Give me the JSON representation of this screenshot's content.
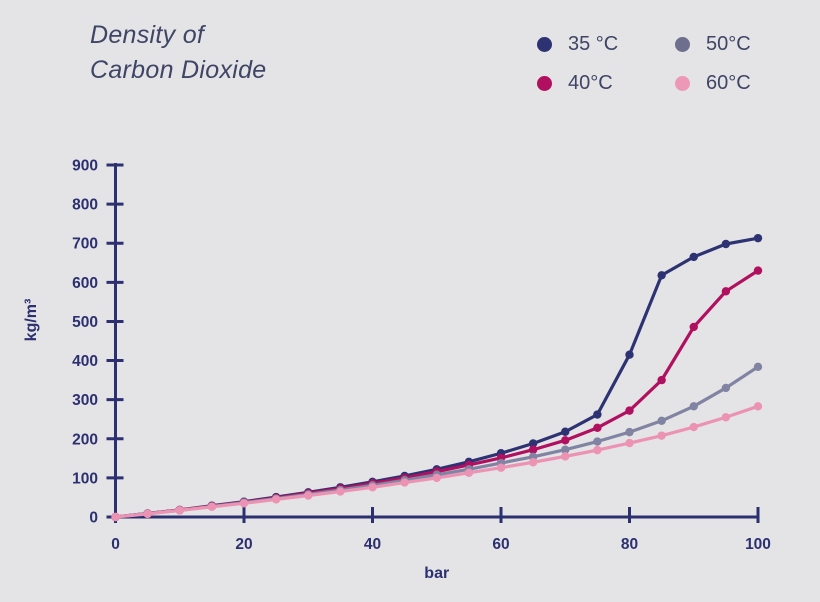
{
  "title": {
    "line1": "Density of",
    "line2": "Carbon Dioxide"
  },
  "legend": [
    {
      "label": "35 °C",
      "color": "#2d3272",
      "col": 0,
      "row": 0
    },
    {
      "label": "40°C",
      "color": "#b0105f",
      "col": 0,
      "row": 1
    },
    {
      "label": "50°C",
      "color": "#6e6e8e",
      "col": 1,
      "row": 0
    },
    {
      "label": "60°C",
      "color": "#ee98b8",
      "col": 1,
      "row": 1
    }
  ],
  "colors": {
    "background": "#e4e3e5",
    "axis": "#2c3070",
    "title_text": "#3e4566"
  },
  "chart_data": {
    "type": "line",
    "title": "Density of Carbon Dioxide",
    "xlabel": "bar",
    "ylabel": "kg/m³",
    "xlim": [
      0,
      100
    ],
    "ylim": [
      0,
      900
    ],
    "x_ticks": [
      0,
      20,
      40,
      60,
      80,
      100
    ],
    "y_ticks": [
      0,
      100,
      200,
      300,
      400,
      500,
      600,
      700,
      800,
      900
    ],
    "grid": false,
    "legend_position": "top-right",
    "x": [
      0,
      5,
      10,
      15,
      20,
      25,
      30,
      35,
      40,
      45,
      50,
      55,
      60,
      65,
      70,
      75,
      80,
      85,
      90,
      95,
      100
    ],
    "series": [
      {
        "name": "35 °C",
        "color": "#2d3272",
        "values": [
          0,
          9,
          18,
          29,
          39,
          51,
          63,
          76,
          90,
          105,
          122,
          141,
          163,
          188,
          218,
          262,
          415,
          618,
          665,
          698,
          713
        ]
      },
      {
        "name": "40°C",
        "color": "#b0105f",
        "values": [
          0,
          9,
          18,
          28,
          38,
          49,
          61,
          73,
          86,
          100,
          116,
          133,
          151,
          172,
          196,
          228,
          272,
          350,
          486,
          577,
          630
        ]
      },
      {
        "name": "50°C",
        "color": "#8183a3",
        "values": [
          0,
          9,
          17,
          27,
          37,
          47,
          58,
          69,
          81,
          94,
          108,
          122,
          138,
          154,
          172,
          193,
          217,
          246,
          283,
          330,
          384
        ]
      },
      {
        "name": "60°C",
        "color": "#ec93b4",
        "values": [
          0,
          8,
          17,
          26,
          35,
          45,
          55,
          65,
          76,
          88,
          100,
          113,
          126,
          140,
          155,
          171,
          189,
          208,
          230,
          255,
          283
        ]
      }
    ]
  }
}
